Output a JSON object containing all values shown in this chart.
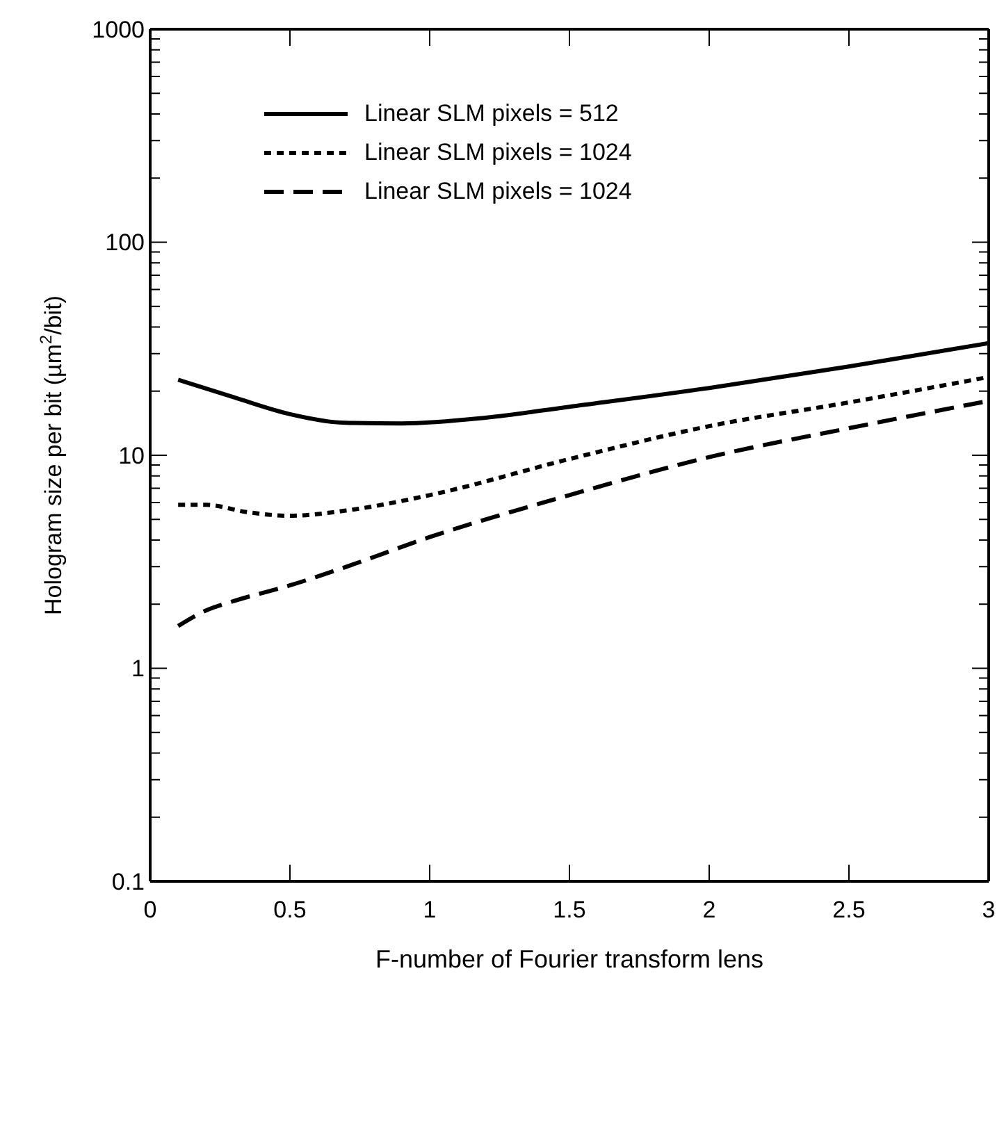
{
  "chart_data": {
    "type": "line",
    "xlabel": "F-number of Fourier transform lens",
    "ylabel": "Hologram size per bit (µm$^{2}$/bit)",
    "x": [
      0.1,
      0.3,
      0.5,
      0.7,
      0.9,
      1.2,
      1.5,
      2,
      2.5,
      3
    ],
    "series": [
      {
        "name": "Linear SLM pixels = 512",
        "color": "#000000",
        "line_style": "solid",
        "values": [
          22.6,
          18.7,
          15.6,
          14.2,
          14.1,
          15.0,
          16.9,
          20.7,
          26.1,
          33.6
        ]
      },
      {
        "name": "Linear SLM pixels = 1024",
        "color": "#000000",
        "line_style": "dotted",
        "x": [
          0.1,
          0.2,
          0.35,
          0.5,
          0.7,
          1.0,
          1.5,
          2,
          2.5,
          3
        ],
        "values": [
          5.85,
          5.85,
          5.4,
          5.2,
          5.5,
          6.5,
          9.6,
          13.7,
          17.7,
          23.3
        ]
      },
      {
        "name": "Linear SLM pixels = 1024",
        "color": "#000000",
        "line_style": "dashed",
        "x": [
          0.1,
          0.2,
          0.3,
          0.5,
          0.69,
          1.0,
          1.5,
          2,
          2.5,
          3
        ],
        "values": [
          1.58,
          1.87,
          2.07,
          2.45,
          2.96,
          4.13,
          6.5,
          9.8,
          13.4,
          18.0
        ]
      }
    ],
    "log": "y",
    "xlim": [
      0,
      3
    ],
    "ylim": [
      0.1,
      1000
    ],
    "xticks": [
      0,
      0.5,
      1,
      1.5,
      2,
      2.5,
      3
    ],
    "yticks": [
      0.1,
      {
        "value": 0.2,
        "label": null
      },
      {
        "value": 0.3,
        "label": null
      },
      {
        "value": 0.4,
        "label": null
      },
      {
        "value": 0.5,
        "label": null
      },
      {
        "value": 0.6,
        "label": null
      },
      {
        "value": 0.7,
        "label": null
      },
      {
        "value": 0.8,
        "label": null
      },
      {
        "value": 0.9,
        "label": null
      },
      1,
      {
        "value": 2,
        "label": null
      },
      {
        "value": 3,
        "label": null
      },
      {
        "value": 4,
        "label": null
      },
      {
        "value": 5,
        "label": null
      },
      {
        "value": 6,
        "label": null
      },
      {
        "value": 7,
        "label": null
      },
      {
        "value": 8,
        "label": null
      },
      {
        "value": 9,
        "label": null
      },
      10,
      {
        "value": 20,
        "label": null
      },
      {
        "value": 30,
        "label": null
      },
      {
        "value": 40,
        "label": null
      },
      {
        "value": 50,
        "label": null
      },
      {
        "value": 60,
        "label": null
      },
      {
        "value": 70,
        "label": null
      },
      {
        "value": 80,
        "label": null
      },
      {
        "value": 90,
        "label": null
      },
      100,
      {
        "value": 200,
        "label": null
      },
      {
        "value": 300,
        "label": null
      },
      {
        "value": 400,
        "label": null
      },
      {
        "value": 500,
        "label": null
      },
      {
        "value": 600,
        "label": null
      },
      {
        "value": 700,
        "label": null
      },
      {
        "value": 800,
        "label": null
      },
      {
        "value": 900,
        "label": null
      },
      1000
    ],
    "legend": "top left",
    "marker": "none"
  }
}
